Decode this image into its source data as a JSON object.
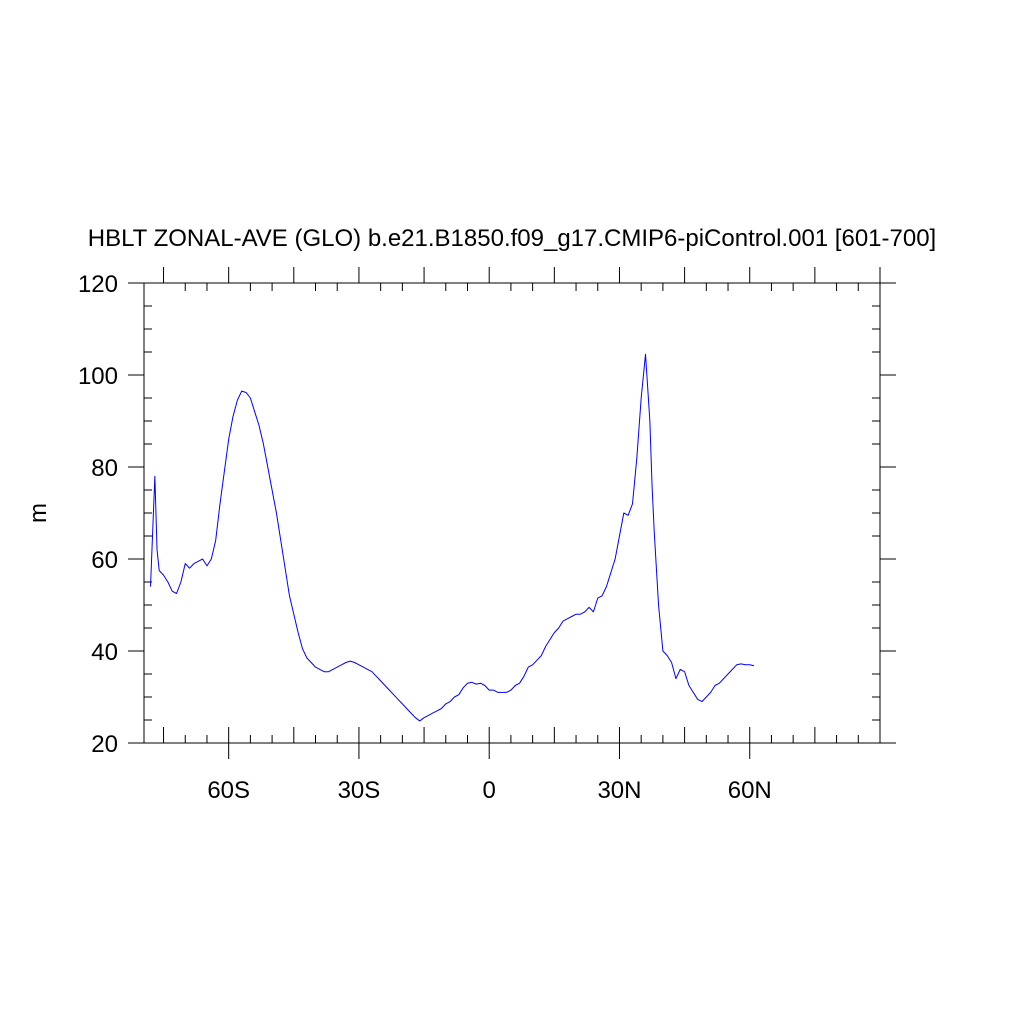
{
  "chart_data": {
    "type": "line",
    "title": "HBLT ZONAL-AVE (GLO) b.e21.B1850.f09_g17.CMIP6-piControl.001 [601-700]",
    "xlabel": "",
    "ylabel": "m",
    "xlim": [
      -79.5,
      90
    ],
    "ylim": [
      20,
      120
    ],
    "x_ticks": [
      {
        "value": -60,
        "label": "60S"
      },
      {
        "value": -30,
        "label": "30S"
      },
      {
        "value": 0,
        "label": "0"
      },
      {
        "value": 30,
        "label": "30N"
      },
      {
        "value": 60,
        "label": "60N"
      }
    ],
    "y_ticks": [
      {
        "value": 20,
        "label": "20"
      },
      {
        "value": 40,
        "label": "40"
      },
      {
        "value": 60,
        "label": "60"
      },
      {
        "value": 80,
        "label": "80"
      },
      {
        "value": 100,
        "label": "100"
      },
      {
        "value": 120,
        "label": "120"
      }
    ],
    "grid": false,
    "line_color": "#0000ff",
    "series": [
      {
        "points": [
          [
            -78,
            54
          ],
          [
            -77,
            78
          ],
          [
            -76.5,
            62
          ],
          [
            -76,
            57.5
          ],
          [
            -75,
            56.5
          ],
          [
            -74,
            55
          ],
          [
            -73,
            53
          ],
          [
            -72,
            52.5
          ],
          [
            -71,
            55
          ],
          [
            -70,
            59
          ],
          [
            -69,
            58
          ],
          [
            -68,
            59
          ],
          [
            -67,
            59.5
          ],
          [
            -66,
            60
          ],
          [
            -65,
            58.5
          ],
          [
            -64,
            60
          ],
          [
            -63,
            64
          ],
          [
            -62,
            72
          ],
          [
            -61,
            79
          ],
          [
            -60,
            86
          ],
          [
            -59,
            91
          ],
          [
            -58,
            94.5
          ],
          [
            -57,
            96.5
          ],
          [
            -56,
            96.2
          ],
          [
            -55,
            95
          ],
          [
            -54,
            92
          ],
          [
            -53,
            89
          ],
          [
            -52,
            85
          ],
          [
            -51,
            80
          ],
          [
            -50,
            75
          ],
          [
            -49,
            70
          ],
          [
            -48,
            64
          ],
          [
            -47,
            58
          ],
          [
            -46,
            52
          ],
          [
            -45,
            48
          ],
          [
            -44,
            44
          ],
          [
            -43,
            40.5
          ],
          [
            -42,
            38.5
          ],
          [
            -41,
            37.5
          ],
          [
            -40,
            36.5
          ],
          [
            -39,
            36
          ],
          [
            -38,
            35.5
          ],
          [
            -37,
            35.5
          ],
          [
            -36,
            36
          ],
          [
            -35,
            36.5
          ],
          [
            -34,
            37
          ],
          [
            -33,
            37.5
          ],
          [
            -32,
            37.8
          ],
          [
            -31,
            37.5
          ],
          [
            -30,
            37
          ],
          [
            -29,
            36.5
          ],
          [
            -28,
            36
          ],
          [
            -27,
            35.5
          ],
          [
            -26,
            34.5
          ],
          [
            -25,
            33.5
          ],
          [
            -24,
            32.5
          ],
          [
            -23,
            31.5
          ],
          [
            -22,
            30.5
          ],
          [
            -21,
            29.5
          ],
          [
            -20,
            28.5
          ],
          [
            -19,
            27.5
          ],
          [
            -18,
            26.5
          ],
          [
            -17,
            25.5
          ],
          [
            -16,
            24.8
          ],
          [
            -15,
            25.5
          ],
          [
            -14,
            26
          ],
          [
            -13,
            26.5
          ],
          [
            -12,
            27
          ],
          [
            -11,
            27.5
          ],
          [
            -10,
            28.5
          ],
          [
            -9,
            29
          ],
          [
            -8,
            30
          ],
          [
            -7,
            30.5
          ],
          [
            -6,
            32
          ],
          [
            -5,
            33
          ],
          [
            -4,
            33.2
          ],
          [
            -3,
            32.8
          ],
          [
            -2,
            33
          ],
          [
            -1,
            32.5
          ],
          [
            0,
            31.5
          ],
          [
            1,
            31.5
          ],
          [
            2,
            31
          ],
          [
            3,
            31
          ],
          [
            4,
            31
          ],
          [
            5,
            31.5
          ],
          [
            6,
            32.5
          ],
          [
            7,
            33
          ],
          [
            8,
            34.5
          ],
          [
            9,
            36.5
          ],
          [
            10,
            37
          ],
          [
            11,
            38
          ],
          [
            12,
            39
          ],
          [
            13,
            41
          ],
          [
            14,
            42.5
          ],
          [
            15,
            44
          ],
          [
            16,
            45
          ],
          [
            17,
            46.5
          ],
          [
            18,
            47
          ],
          [
            19,
            47.5
          ],
          [
            20,
            48
          ],
          [
            21,
            48
          ],
          [
            22,
            48.5
          ],
          [
            23,
            49.5
          ],
          [
            24,
            48.5
          ],
          [
            25,
            51.5
          ],
          [
            26,
            52
          ],
          [
            27,
            54
          ],
          [
            28,
            57
          ],
          [
            29,
            60
          ],
          [
            30,
            65
          ],
          [
            31,
            70
          ],
          [
            32,
            69.5
          ],
          [
            33,
            72
          ],
          [
            34,
            82
          ],
          [
            35,
            95
          ],
          [
            36,
            104.5
          ],
          [
            37,
            90
          ],
          [
            37.5,
            76
          ],
          [
            38,
            66
          ],
          [
            39,
            50
          ],
          [
            40,
            40
          ],
          [
            41,
            39
          ],
          [
            42,
            37.5
          ],
          [
            43,
            34
          ],
          [
            44,
            36
          ],
          [
            45,
            35.5
          ],
          [
            46,
            32.5
          ],
          [
            47,
            31
          ],
          [
            48,
            29.5
          ],
          [
            49,
            29
          ],
          [
            50,
            30
          ],
          [
            51,
            31
          ],
          [
            52,
            32.5
          ],
          [
            53,
            33
          ],
          [
            54,
            34
          ],
          [
            55,
            35
          ],
          [
            56,
            36
          ],
          [
            57,
            37
          ],
          [
            58,
            37.2
          ],
          [
            59,
            37
          ],
          [
            60,
            37
          ],
          [
            61,
            36.8
          ]
        ]
      }
    ]
  }
}
